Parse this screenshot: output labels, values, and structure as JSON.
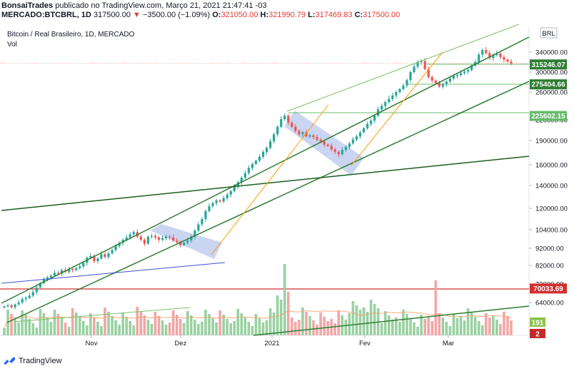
{
  "header": {
    "line1_author": "BonsaiTrades",
    "line1_rest": "publicado no TradingView.com, Março 21, 2021 21:47:41 -03",
    "symbol": "MERCADO:BTCBRL, 1D",
    "last": "317500.00",
    "change": "−3500.00 (−1.09%)",
    "o_label": "O:",
    "o_value": "321050.00",
    "h_label": "H:",
    "h_value": "321990.79",
    "l_label": "L:",
    "l_value": "317469.83",
    "c_label": "C:",
    "c_value": "317500.00"
  },
  "chart_title": "Bitcoin / Real Brasileiro, 1D, MERCADO",
  "vol_label": "Vol",
  "currency_badge": "BRL",
  "footer": {
    "brand": "TradingView"
  },
  "colors": {
    "up": "#26a69a",
    "down": "#ef5350",
    "vol_up": "#9ad1a2",
    "vol_down": "#f2a6a6",
    "trend_dark": "#2e7d32",
    "trend_light": "#8bc34a",
    "orange": "#ff9800",
    "blue": "#3f51d8",
    "red_line": "#d32f2f",
    "box": "#b8c7ee"
  },
  "chart_data": {
    "type": "candlestick",
    "title": "Bitcoin / Real Brasileiro, 1D, MERCADO",
    "x_ticks": [
      "Nov",
      "Dez",
      "2021",
      "Fev",
      "Mar"
    ],
    "y_ticks": [
      "340000.00",
      "300000.00",
      "260000.00",
      "220000.00",
      "190000.00",
      "160000.00",
      "140000.00",
      "120000.00",
      "104000.00",
      "92000.00",
      "82000.00",
      "72000.00",
      "64000.00"
    ],
    "price_badges": [
      {
        "label": "315246.07",
        "value": 315246.07
      },
      {
        "label": "275404.66",
        "value": 275404.66
      },
      {
        "label": "225602.15",
        "value": 225602.15
      },
      {
        "label": "70033.69",
        "value": 70033.69
      }
    ],
    "volume_badges": [
      "191",
      "2"
    ],
    "closes": [
      62000,
      62500,
      61500,
      63000,
      64000,
      65500,
      66000,
      67000,
      68500,
      70500,
      72500,
      74500,
      75500,
      76500,
      78000,
      77500,
      79500,
      78500,
      80000,
      79500,
      80500,
      81500,
      83500,
      86500,
      87500,
      84500,
      86000,
      88500,
      87000,
      89000,
      91000,
      93500,
      95500,
      97500,
      99000,
      101000,
      102500,
      99500,
      97500,
      95000,
      99500,
      100000,
      99000,
      97500,
      98500,
      99500,
      99000,
      97000,
      96000,
      94000,
      95500,
      97000,
      99500,
      103500,
      108000,
      112000,
      118000,
      122000,
      124500,
      127000,
      126000,
      129000,
      132000,
      135000,
      139000,
      143000,
      147500,
      152000,
      157000,
      161000,
      165000,
      170000,
      176000,
      181000,
      189000,
      199000,
      210000,
      221000,
      226000,
      216000,
      210000,
      204000,
      199000,
      202000,
      196000,
      197500,
      195000,
      191000,
      189000,
      185000,
      183500,
      179000,
      176000,
      173000,
      178500,
      182000,
      186500,
      191500,
      196000,
      202000,
      208000,
      214000,
      219000,
      226000,
      235000,
      240000,
      245500,
      250000,
      255000,
      260000,
      266000,
      273000,
      284000,
      300000,
      311000,
      320000,
      322000,
      306000,
      290000,
      283000,
      278000,
      271000,
      276000,
      281000,
      287000,
      292000,
      294000,
      298000,
      301000,
      304000,
      313000,
      320000,
      335000,
      344000,
      338000,
      328000,
      334000,
      337000,
      330000,
      325000,
      321000,
      317500
    ],
    "trendlines": [
      "upper channel",
      "lower channel",
      "long support",
      "volume trend",
      "orange acceleration",
      "blue support",
      "horizontal levels"
    ]
  }
}
